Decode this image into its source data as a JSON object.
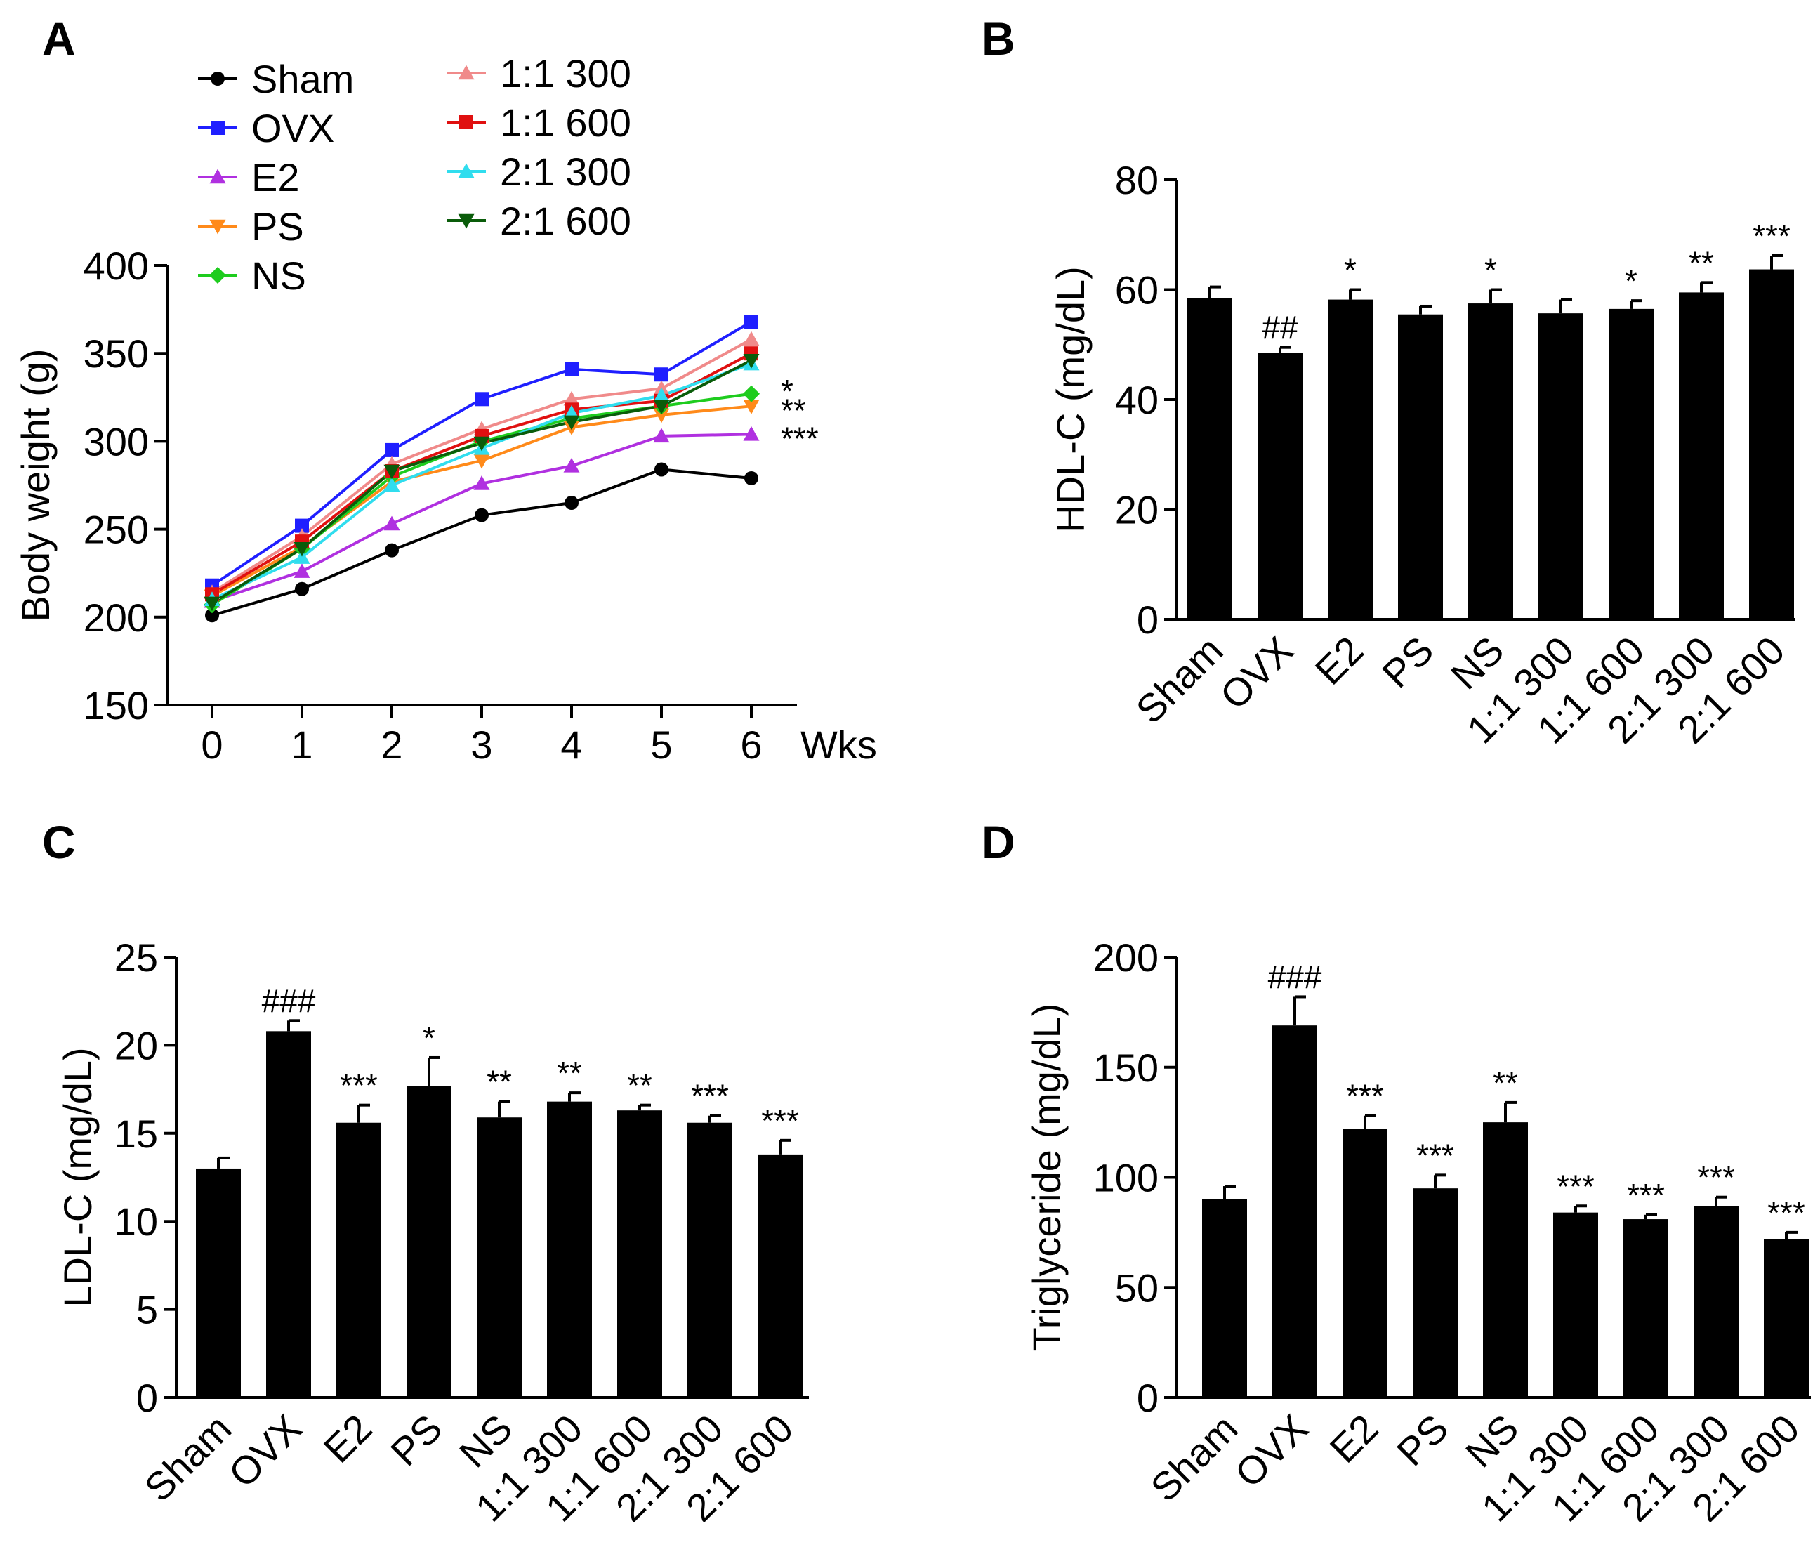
{
  "figure": {
    "panels": [
      "A",
      "B",
      "C",
      "D"
    ]
  },
  "chart_data": [
    {
      "id": "A",
      "type": "line",
      "title": "",
      "xlabel": "Wks",
      "ylabel": "Body weight (g)",
      "x": [
        0,
        1,
        2,
        3,
        4,
        5,
        6
      ],
      "xticks": [
        "0",
        "1",
        "2",
        "3",
        "4",
        "5",
        "6"
      ],
      "ylim": [
        150,
        400
      ],
      "yticks": [
        "150",
        "200",
        "250",
        "300",
        "350",
        "400"
      ],
      "series": [
        {
          "name": "Sham",
          "color": "#000000",
          "marker": "circle",
          "values": [
            201,
            216,
            238,
            258,
            265,
            284,
            279
          ]
        },
        {
          "name": "OVX",
          "color": "#1f1fff",
          "marker": "square",
          "values": [
            218,
            252,
            295,
            324,
            341,
            338,
            368
          ]
        },
        {
          "name": "E2",
          "color": "#b030e0",
          "marker": "triangle-up",
          "values": [
            209,
            226,
            253,
            276,
            286,
            303,
            304
          ]
        },
        {
          "name": "PS",
          "color": "#ff8a1a",
          "marker": "triangle-down",
          "values": [
            212,
            240,
            277,
            289,
            308,
            315,
            320
          ]
        },
        {
          "name": "NS",
          "color": "#1ecc1e",
          "marker": "diamond",
          "values": [
            207,
            239,
            280,
            300,
            313,
            320,
            327
          ]
        },
        {
          "name": "1:1 300",
          "color": "#f08a8a",
          "marker": "triangle-up",
          "values": [
            214,
            246,
            287,
            307,
            324,
            330,
            358
          ]
        },
        {
          "name": "1:1 600",
          "color": "#e01010",
          "marker": "square",
          "values": [
            213,
            243,
            283,
            303,
            318,
            323,
            350
          ]
        },
        {
          "name": "2:1 300",
          "color": "#30ddee",
          "marker": "triangle-up",
          "values": [
            210,
            234,
            275,
            296,
            316,
            326,
            344
          ]
        },
        {
          "name": "2:1 600",
          "color": "#0a5c0a",
          "marker": "triangle-down",
          "values": [
            208,
            239,
            283,
            299,
            311,
            320,
            346
          ]
        }
      ],
      "annotations": [
        {
          "text": "*",
          "y": 331
        },
        {
          "text": "**",
          "y": 320
        },
        {
          "text": "***",
          "y": 304
        }
      ]
    },
    {
      "id": "B",
      "type": "bar",
      "title": "",
      "ylabel": "HDL-C (mg/dL)",
      "ylim": [
        0,
        80
      ],
      "yticks": [
        "0",
        "20",
        "40",
        "60",
        "80"
      ],
      "categories": [
        "Sham",
        "OVX",
        "E2",
        "PS",
        "NS",
        "1:1 300",
        "1:1 600",
        "2:1 300",
        "2:1 600"
      ],
      "values": [
        58.5,
        48.5,
        58.2,
        55.5,
        57.5,
        55.7,
        56.5,
        59.5,
        63.7
      ],
      "errors": [
        2.0,
        1.0,
        1.8,
        1.5,
        2.5,
        2.5,
        1.5,
        1.8,
        2.5
      ],
      "significance": [
        "",
        "##",
        "*",
        "",
        "*",
        "",
        "*",
        "**",
        "***"
      ]
    },
    {
      "id": "C",
      "type": "bar",
      "title": "",
      "ylabel": "LDL-C (mg/dL)",
      "ylim": [
        0,
        25
      ],
      "yticks": [
        "0",
        "5",
        "10",
        "15",
        "20",
        "25"
      ],
      "categories": [
        "Sham",
        "OVX",
        "E2",
        "PS",
        "NS",
        "1:1 300",
        "1:1 600",
        "2:1 300",
        "2:1 600"
      ],
      "values": [
        13.0,
        20.8,
        15.6,
        17.7,
        15.9,
        16.8,
        16.3,
        15.6,
        13.8
      ],
      "errors": [
        0.6,
        0.6,
        1.0,
        1.6,
        0.9,
        0.5,
        0.3,
        0.4,
        0.8
      ],
      "significance": [
        "",
        "###",
        "***",
        "*",
        "**",
        "**",
        "**",
        "***",
        "***"
      ]
    },
    {
      "id": "D",
      "type": "bar",
      "title": "",
      "ylabel": "Triglyceride (mg/dL)",
      "ylim": [
        0,
        200
      ],
      "yticks": [
        "0",
        "50",
        "100",
        "150",
        "200"
      ],
      "categories": [
        "Sham",
        "OVX",
        "E2",
        "PS",
        "NS",
        "1:1 300",
        "1:1 600",
        "2:1 300",
        "2:1 600"
      ],
      "values": [
        90,
        169,
        122,
        95,
        125,
        84,
        81,
        87,
        72
      ],
      "errors": [
        6,
        13,
        6,
        6,
        9,
        3,
        2,
        4,
        3
      ],
      "significance": [
        "",
        "###",
        "***",
        "***",
        "**",
        "***",
        "***",
        "***",
        "***"
      ]
    }
  ]
}
